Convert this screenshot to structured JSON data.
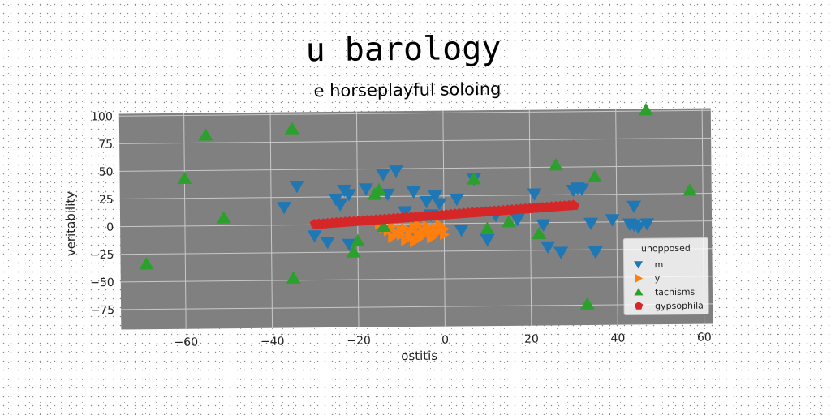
{
  "chart_data": {
    "type": "scatter",
    "title": "u barology",
    "subtitle": "e horseplayful soloing",
    "xlabel": "ostitis",
    "ylabel": "veritability",
    "xlim": [
      -75,
      62
    ],
    "ylim": [
      -93,
      102
    ],
    "xticks": [
      -60,
      -40,
      -20,
      0,
      20,
      40,
      60
    ],
    "yticks": [
      -75,
      -50,
      -25,
      0,
      25,
      50,
      75,
      100
    ],
    "grid": true,
    "legend": {
      "title": "unopposed",
      "position": "lower-right"
    },
    "colors": {
      "plot_bg": "#808080",
      "grid": "#c8c8c8"
    },
    "series": [
      {
        "name": "m",
        "marker": "triangle-down",
        "color": "#1f77b4",
        "points": [
          [
            -37,
            16
          ],
          [
            -34,
            35
          ],
          [
            -30,
            -10
          ],
          [
            -27,
            -16
          ],
          [
            -25,
            23
          ],
          [
            -24,
            18
          ],
          [
            -23,
            31
          ],
          [
            -22,
            27
          ],
          [
            -22,
            -18
          ],
          [
            -18,
            32
          ],
          [
            -14,
            45
          ],
          [
            -13,
            27
          ],
          [
            -11,
            48
          ],
          [
            -9,
            11
          ],
          [
            -7,
            29
          ],
          [
            -4,
            20
          ],
          [
            -3,
            8
          ],
          [
            -2,
            25
          ],
          [
            -1,
            18
          ],
          [
            3,
            22
          ],
          [
            4,
            -6
          ],
          [
            7,
            40
          ],
          [
            10,
            -15
          ],
          [
            12,
            7
          ],
          [
            17,
            3
          ],
          [
            21,
            26
          ],
          [
            23,
            -2
          ],
          [
            24,
            -22
          ],
          [
            27,
            -27
          ],
          [
            30,
            29
          ],
          [
            31,
            31
          ],
          [
            32,
            30
          ],
          [
            34,
            -1
          ],
          [
            35,
            -27
          ],
          [
            39,
            2
          ],
          [
            43,
            -2
          ],
          [
            44,
            14
          ],
          [
            44,
            -3
          ],
          [
            45,
            -5
          ],
          [
            47,
            -2
          ]
        ]
      },
      {
        "name": "y",
        "marker": "triangle-right",
        "color": "#ff7f0e",
        "points": [
          [
            -15,
            0
          ],
          [
            -14,
            -3
          ],
          [
            -13,
            -6
          ],
          [
            -12,
            -2
          ],
          [
            -11,
            -8
          ],
          [
            -10,
            -5
          ],
          [
            -10,
            -10
          ],
          [
            -9,
            -4
          ],
          [
            -8,
            -7
          ],
          [
            -8,
            -12
          ],
          [
            -7,
            -3
          ],
          [
            -6,
            -9
          ],
          [
            -6,
            -14
          ],
          [
            -5,
            -6
          ],
          [
            -5,
            -11
          ],
          [
            -4,
            -2
          ],
          [
            -4,
            -8
          ],
          [
            -3,
            -5
          ],
          [
            -3,
            -10
          ],
          [
            -2,
            -4
          ],
          [
            -2,
            -9
          ],
          [
            -1,
            -7
          ],
          [
            -1,
            -1
          ],
          [
            0,
            -5
          ],
          [
            0,
            -10
          ],
          [
            -12,
            -12
          ],
          [
            -9,
            -15
          ],
          [
            -7,
            -16
          ],
          [
            -6,
            -1
          ],
          [
            -3,
            -13
          ]
        ]
      },
      {
        "name": "tachisms",
        "marker": "triangle-up",
        "color": "#2ca02c",
        "points": [
          [
            -69,
            -34
          ],
          [
            -60,
            43
          ],
          [
            -55,
            82
          ],
          [
            -51,
            7
          ],
          [
            -35,
            87
          ],
          [
            -35,
            -48
          ],
          [
            -21,
            -25
          ],
          [
            -20,
            -15
          ],
          [
            -16,
            27
          ],
          [
            -15,
            31
          ],
          [
            -14,
            -2
          ],
          [
            7,
            40
          ],
          [
            10,
            -5
          ],
          [
            15,
            1
          ],
          [
            22,
            -10
          ],
          [
            26,
            52
          ],
          [
            33,
            -74
          ],
          [
            35,
            41
          ],
          [
            47,
            101
          ],
          [
            57,
            28
          ]
        ]
      },
      {
        "name": "gypsophila",
        "marker": "pentagon",
        "color": "#d62728",
        "line": {
          "x0": -30,
          "y0": 1,
          "x1": 30,
          "y1": 16,
          "count": 60
        }
      }
    ]
  }
}
